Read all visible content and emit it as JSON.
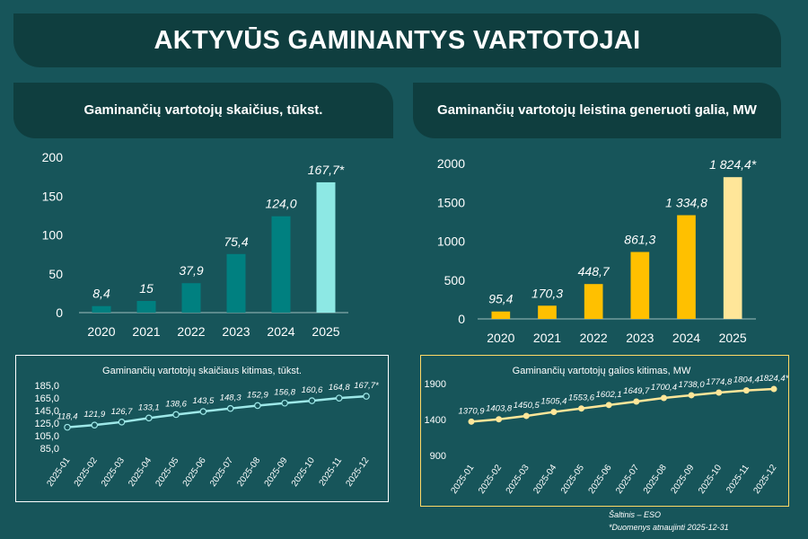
{
  "title": "AKTYVŪS GAMINANTYS VARTOTOJAI",
  "footnote": {
    "source": "Šaltinis – ESO",
    "note": "*Duomenys atnaujinti 2025-12-31"
  },
  "colors": {
    "background": "#17555a",
    "panel": "#0f3e3f",
    "teal_bar": "#008080",
    "teal_bar_highlight": "#8de8e4",
    "yellow_bar": "#ffc000",
    "yellow_bar_highlight": "#ffe699",
    "teal_line": "#9ee8e8",
    "yellow_line": "#ffe699"
  },
  "chart_data": [
    {
      "type": "bar",
      "title": "Gaminančių vartotojų skaičius, tūkst.",
      "categories": [
        "2020",
        "2021",
        "2022",
        "2023",
        "2024",
        "2025"
      ],
      "values": [
        8.4,
        15,
        37.9,
        75.4,
        124.0,
        167.7
      ],
      "data_labels": [
        "8,4",
        "15",
        "37,9",
        "75,4",
        "124,0",
        "167,7*"
      ],
      "y_ticks": [
        0,
        50,
        100,
        150,
        200
      ],
      "ylim": [
        0,
        200
      ],
      "grid": false,
      "highlight_last": true
    },
    {
      "type": "bar",
      "title": "Gaminančių vartotojų leistina generuoti galia, MW",
      "categories": [
        "2020",
        "2021",
        "2022",
        "2023",
        "2024",
        "2025"
      ],
      "values": [
        95.4,
        170.3,
        448.7,
        861.3,
        1334.8,
        1824.4
      ],
      "data_labels": [
        "95,4",
        "170,3",
        "448,7",
        "861,3",
        "1 334,8",
        "1 824,4*"
      ],
      "y_ticks": [
        0,
        500,
        1000,
        1500,
        2000
      ],
      "ylim": [
        0,
        2000
      ],
      "grid": false,
      "highlight_last": true
    },
    {
      "type": "line",
      "title": "Gaminančių vartotojų skaičiaus kitimas, tūkst.",
      "x": [
        "2025-01",
        "2025-02",
        "2025-03",
        "2025-04",
        "2025-05",
        "2025-06",
        "2025-07",
        "2025-08",
        "2025-09",
        "2025-10",
        "2025-11",
        "2025-12"
      ],
      "values": [
        118.4,
        121.9,
        126.7,
        133.1,
        138.6,
        143.5,
        148.3,
        152.9,
        156.8,
        160.6,
        164.8,
        167.7
      ],
      "data_labels": [
        "118,4",
        "121,9",
        "126,7",
        "133,1",
        "138,6",
        "143,5",
        "148,3",
        "152,9",
        "156,8",
        "160,6",
        "164,8",
        "167,7*"
      ],
      "y_ticks": [
        85,
        105,
        125,
        145,
        165,
        185
      ],
      "y_tick_labels": [
        "85,0",
        "105,0",
        "125,0",
        "145,0",
        "165,0",
        "185,0"
      ],
      "ylim": [
        85,
        185
      ],
      "grid": false
    },
    {
      "type": "line",
      "title": "Gaminančių vartotojų galios kitimas, MW",
      "x": [
        "2025-01",
        "2025-02",
        "2025-03",
        "2025-04",
        "2025-05",
        "2025-06",
        "2025-07",
        "2025-08",
        "2025-09",
        "2025-10",
        "2025-11",
        "2025-12"
      ],
      "values": [
        1370.9,
        1403.8,
        1450.5,
        1505.4,
        1553.6,
        1602.1,
        1649.7,
        1700.4,
        1738.0,
        1774.8,
        1804.4,
        1824.4
      ],
      "data_labels": [
        "1370,9",
        "1403,8",
        "1450,5",
        "1505,4",
        "1553,6",
        "1602,1",
        "1649,7",
        "1700,4",
        "1738,0",
        "1774,8",
        "1804,4",
        "1824,4*"
      ],
      "y_ticks": [
        900,
        1400,
        1900
      ],
      "y_tick_labels": [
        "900",
        "1400",
        "1900"
      ],
      "ylim": [
        900,
        1900
      ],
      "grid": false
    }
  ]
}
